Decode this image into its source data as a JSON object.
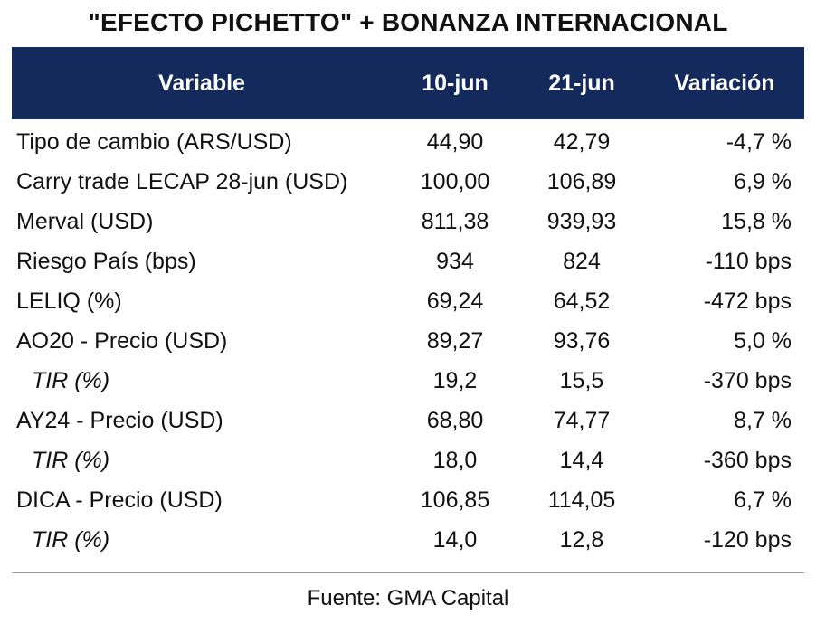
{
  "title": "\"EFECTO PICHETTO\" + BONANZA INTERNACIONAL",
  "table": {
    "headers": {
      "variable": "Variable",
      "date1": "10-jun",
      "date2": "21-jun",
      "change": "Variación"
    },
    "rows": [
      {
        "label": "Tipo de cambio (ARS/USD)",
        "v1": "44,90",
        "v2": "42,79",
        "change": "-4,7 %",
        "sub": false
      },
      {
        "label": "Carry trade LECAP 28-jun (USD)",
        "v1": "100,00",
        "v2": "106,89",
        "change": "6,9 %",
        "sub": false
      },
      {
        "label": "Merval (USD)",
        "v1": "811,38",
        "v2": "939,93",
        "change": "15,8 %",
        "sub": false
      },
      {
        "label": "Riesgo País (bps)",
        "v1": "934",
        "v2": "824",
        "change": "-110 bps",
        "sub": false
      },
      {
        "label": "LELIQ (%)",
        "v1": "69,24",
        "v2": "64,52",
        "change": "-472 bps",
        "sub": false
      },
      {
        "label": "AO20 - Precio (USD)",
        "v1": "89,27",
        "v2": "93,76",
        "change": "5,0 %",
        "sub": false
      },
      {
        "label": "TIR (%)",
        "v1": "19,2",
        "v2": "15,5",
        "change": "-370 bps",
        "sub": true
      },
      {
        "label": "AY24 - Precio (USD)",
        "v1": "68,80",
        "v2": "74,77",
        "change": "8,7 %",
        "sub": false
      },
      {
        "label": "TIR (%)",
        "v1": "18,0",
        "v2": "14,4",
        "change": "-360 bps",
        "sub": true
      },
      {
        "label": "DICA - Precio (USD)",
        "v1": "106,85",
        "v2": "114,05",
        "change": "6,7 %",
        "sub": false
      },
      {
        "label": "TIR (%)",
        "v1": "14,0",
        "v2": "12,8",
        "change": "-120 bps",
        "sub": true
      }
    ]
  },
  "source": "Fuente: GMA Capital",
  "colors": {
    "header_bg": "#142a5c",
    "header_text": "#ffffff"
  }
}
